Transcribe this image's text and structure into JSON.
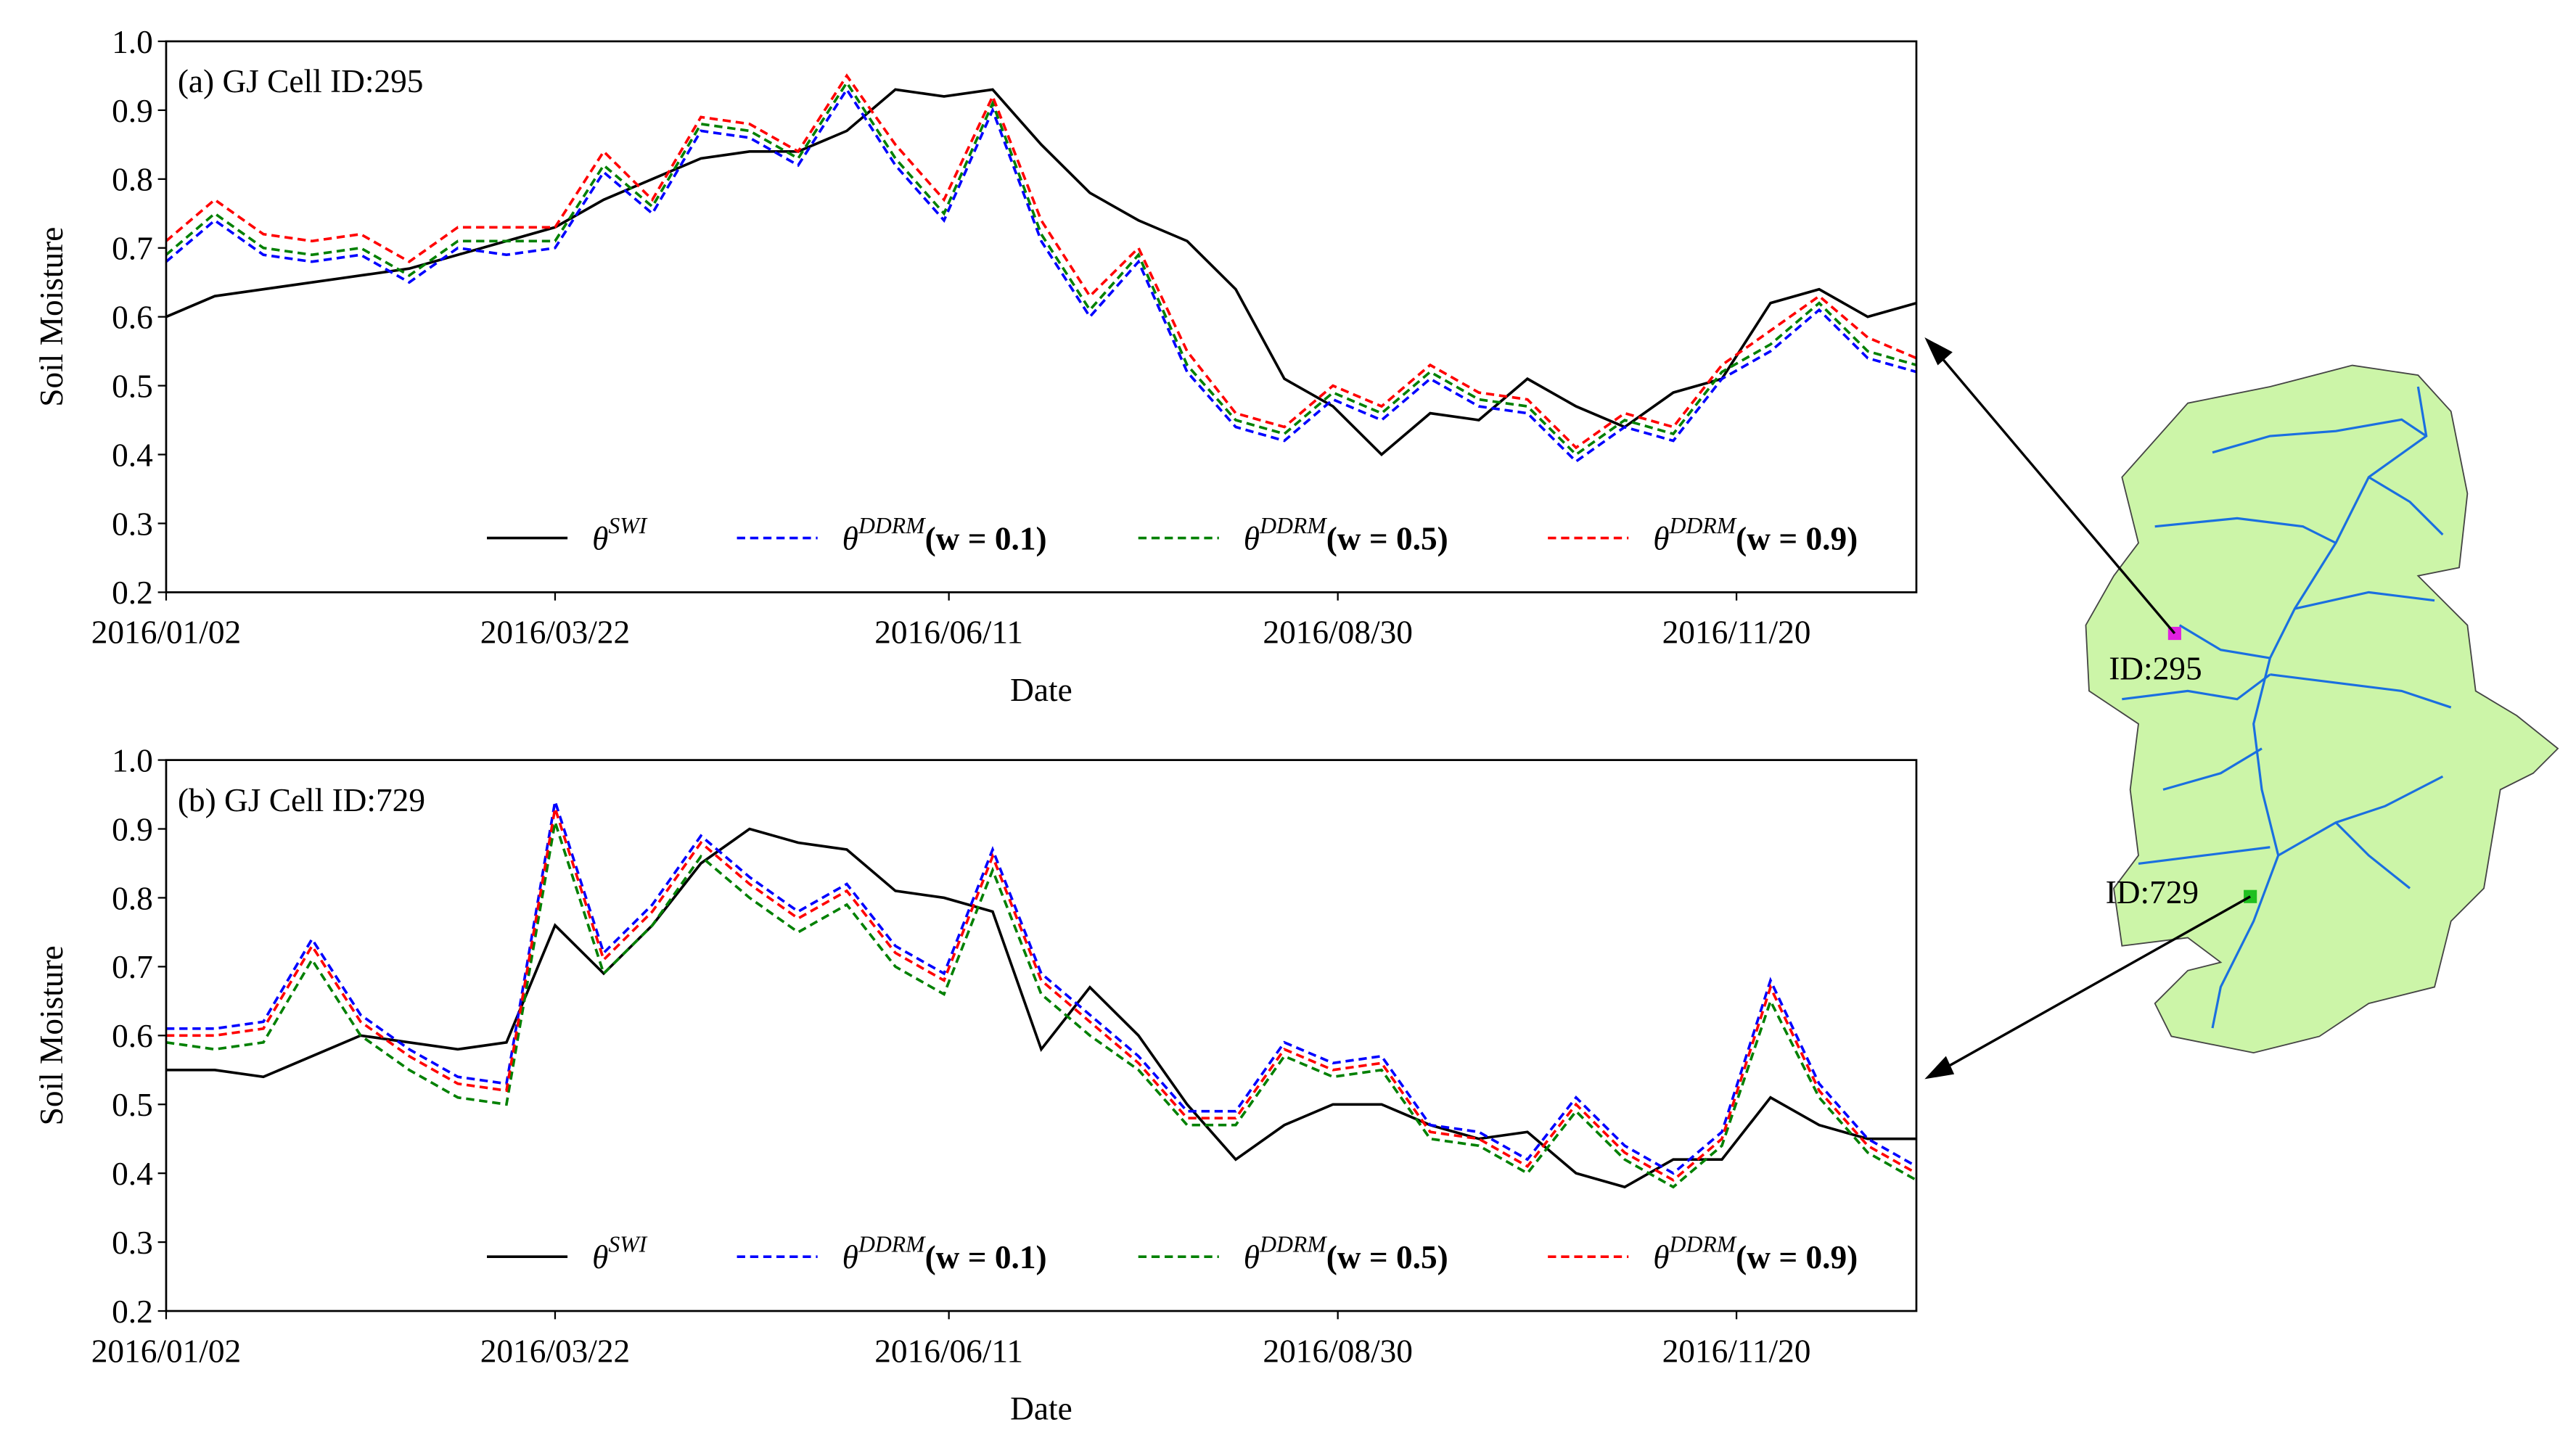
{
  "chart_data": [
    {
      "type": "line",
      "annotation": "(a)  GJ  Cell  ID:295",
      "ylabel": "Soil  Moisture",
      "xlabel": "Date",
      "x": [
        "2016/01/02",
        "2016/01/12",
        "2016/01/22",
        "2016/02/01",
        "2016/02/11",
        "2016/02/21",
        "2016/03/02",
        "2016/03/12",
        "2016/03/22",
        "2016/04/01",
        "2016/04/11",
        "2016/04/21",
        "2016/05/01",
        "2016/05/11",
        "2016/05/21",
        "2016/05/31",
        "2016/06/10",
        "2016/06/20",
        "2016/06/30",
        "2016/07/10",
        "2016/07/20",
        "2016/07/30",
        "2016/08/09",
        "2016/08/19",
        "2016/08/29",
        "2016/09/08",
        "2016/09/18",
        "2016/09/28",
        "2016/10/08",
        "2016/10/18",
        "2016/10/28",
        "2016/11/07",
        "2016/11/17",
        "2016/11/27",
        "2016/12/07",
        "2016/12/17",
        "2016/12/27"
      ],
      "xlim": [
        "2016/01/02",
        "2016/12/27"
      ],
      "xticks": [
        "2016/01/02",
        "2016/03/22",
        "2016/06/11",
        "2016/08/30",
        "2016/11/20"
      ],
      "ylim": [
        0.2,
        1
      ],
      "yticks": [
        0.2,
        0.3,
        0.4,
        0.5,
        0.6,
        0.7,
        0.8,
        0.9,
        {
          "value": 1,
          "label": "1.0"
        }
      ],
      "legend": "lower right",
      "series": [
        {
          "name": [
            "θ",
            "SWI"
          ],
          "color": "#000000",
          "linestyle": "solid",
          "values": [
            0.6,
            0.63,
            0.64,
            0.65,
            0.66,
            0.67,
            0.69,
            0.71,
            0.73,
            0.77,
            0.8,
            0.83,
            0.84,
            0.84,
            0.87,
            0.93,
            0.92,
            0.93,
            0.85,
            0.78,
            0.74,
            0.71,
            0.64,
            0.51,
            0.47,
            0.4,
            0.46,
            0.45,
            0.51,
            0.47,
            0.44,
            0.49,
            0.51,
            0.62,
            0.64,
            0.6,
            0.62
          ]
        },
        {
          "name": [
            "θ",
            "DDRM",
            "(w = 0.1)"
          ],
          "color": "#0000ff",
          "linestyle": "dashed",
          "values": [
            0.68,
            0.74,
            0.69,
            0.68,
            0.69,
            0.65,
            0.7,
            0.69,
            0.7,
            0.81,
            0.75,
            0.87,
            0.86,
            0.82,
            0.93,
            0.82,
            0.74,
            0.9,
            0.71,
            0.6,
            0.68,
            0.52,
            0.44,
            0.42,
            0.48,
            0.45,
            0.51,
            0.47,
            0.46,
            0.39,
            0.44,
            0.42,
            0.51,
            0.55,
            0.61,
            0.54,
            0.52
          ]
        },
        {
          "name": [
            "θ",
            "DDRM",
            "(w = 0.5)"
          ],
          "color": "#008000",
          "linestyle": "dashed",
          "values": [
            0.69,
            0.75,
            0.7,
            0.69,
            0.7,
            0.66,
            0.71,
            0.71,
            0.71,
            0.82,
            0.76,
            0.88,
            0.87,
            0.83,
            0.94,
            0.83,
            0.75,
            0.91,
            0.72,
            0.61,
            0.69,
            0.53,
            0.45,
            0.43,
            0.49,
            0.46,
            0.52,
            0.48,
            0.47,
            0.4,
            0.45,
            0.43,
            0.52,
            0.56,
            0.62,
            0.55,
            0.53
          ]
        },
        {
          "name": [
            "θ",
            "DDRM",
            "(w = 0.9)"
          ],
          "color": "#ff0000",
          "linestyle": "dashed",
          "values": [
            0.71,
            0.77,
            0.72,
            0.71,
            0.72,
            0.68,
            0.73,
            0.73,
            0.73,
            0.84,
            0.77,
            0.89,
            0.88,
            0.84,
            0.95,
            0.85,
            0.77,
            0.92,
            0.74,
            0.63,
            0.7,
            0.55,
            0.46,
            0.44,
            0.5,
            0.47,
            0.53,
            0.49,
            0.48,
            0.41,
            0.46,
            0.44,
            0.53,
            0.58,
            0.63,
            0.57,
            0.54
          ]
        }
      ]
    },
    {
      "type": "line",
      "annotation": "(b)  GJ  Cell  ID:729",
      "ylabel": "Soil  Moisture",
      "xlabel": "Date",
      "x": [
        "2016/01/02",
        "2016/01/12",
        "2016/01/22",
        "2016/02/01",
        "2016/02/11",
        "2016/02/21",
        "2016/03/02",
        "2016/03/12",
        "2016/03/22",
        "2016/04/01",
        "2016/04/11",
        "2016/04/21",
        "2016/05/01",
        "2016/05/11",
        "2016/05/21",
        "2016/05/31",
        "2016/06/10",
        "2016/06/20",
        "2016/06/30",
        "2016/07/10",
        "2016/07/20",
        "2016/07/30",
        "2016/08/09",
        "2016/08/19",
        "2016/08/29",
        "2016/09/08",
        "2016/09/18",
        "2016/09/28",
        "2016/10/08",
        "2016/10/18",
        "2016/10/28",
        "2016/11/07",
        "2016/11/17",
        "2016/11/27",
        "2016/12/07",
        "2016/12/17",
        "2016/12/27"
      ],
      "xlim": [
        "2016/01/02",
        "2016/12/27"
      ],
      "xticks": [
        "2016/01/02",
        "2016/03/22",
        "2016/06/11",
        "2016/08/30",
        "2016/11/20"
      ],
      "ylim": [
        0.2,
        1
      ],
      "yticks": [
        0.2,
        0.3,
        0.4,
        0.5,
        0.6,
        0.7,
        0.8,
        0.9,
        {
          "value": 1,
          "label": "1.0"
        }
      ],
      "legend": "lower right",
      "series": [
        {
          "name": [
            "θ",
            "SWI"
          ],
          "color": "#000000",
          "linestyle": "solid",
          "values": [
            0.55,
            0.55,
            0.54,
            0.57,
            0.6,
            0.59,
            0.58,
            0.59,
            0.76,
            0.69,
            0.76,
            0.85,
            0.9,
            0.88,
            0.87,
            0.81,
            0.8,
            0.78,
            0.58,
            0.67,
            0.6,
            0.5,
            0.42,
            0.47,
            0.5,
            0.5,
            0.47,
            0.45,
            0.46,
            0.4,
            0.38,
            0.42,
            0.42,
            0.51,
            0.47,
            0.45,
            0.45
          ]
        },
        {
          "name": [
            "θ",
            "DDRM",
            "(w = 0.1)"
          ],
          "color": "#0000ff",
          "linestyle": "dashed",
          "values": [
            0.61,
            0.61,
            0.62,
            0.74,
            0.63,
            0.58,
            0.54,
            0.53,
            0.94,
            0.72,
            0.79,
            0.89,
            0.83,
            0.78,
            0.82,
            0.73,
            0.69,
            0.87,
            0.69,
            0.63,
            0.57,
            0.49,
            0.49,
            0.59,
            0.56,
            0.57,
            0.47,
            0.46,
            0.42,
            0.51,
            0.44,
            0.4,
            0.46,
            0.68,
            0.53,
            0.45,
            0.41
          ]
        },
        {
          "name": [
            "θ",
            "DDRM",
            "(w = 0.5)"
          ],
          "color": "#008000",
          "linestyle": "dashed",
          "values": [
            0.59,
            0.58,
            0.59,
            0.71,
            0.6,
            0.55,
            0.51,
            0.5,
            0.91,
            0.69,
            0.76,
            0.86,
            0.8,
            0.75,
            0.79,
            0.7,
            0.66,
            0.84,
            0.66,
            0.6,
            0.55,
            0.47,
            0.47,
            0.57,
            0.54,
            0.55,
            0.45,
            0.44,
            0.4,
            0.49,
            0.42,
            0.38,
            0.44,
            0.65,
            0.51,
            0.43,
            0.39
          ]
        },
        {
          "name": [
            "θ",
            "DDRM",
            "(w = 0.9)"
          ],
          "color": "#ff0000",
          "linestyle": "dashed",
          "values": [
            0.6,
            0.6,
            0.61,
            0.73,
            0.62,
            0.57,
            0.53,
            0.52,
            0.93,
            0.71,
            0.78,
            0.88,
            0.82,
            0.77,
            0.81,
            0.72,
            0.68,
            0.86,
            0.68,
            0.62,
            0.56,
            0.48,
            0.48,
            0.58,
            0.55,
            0.56,
            0.46,
            0.45,
            0.41,
            0.5,
            0.43,
            0.39,
            0.45,
            0.67,
            0.52,
            0.44,
            0.4
          ]
        }
      ]
    }
  ],
  "map": {
    "labels": [
      "ID:295",
      "ID:729"
    ]
  }
}
